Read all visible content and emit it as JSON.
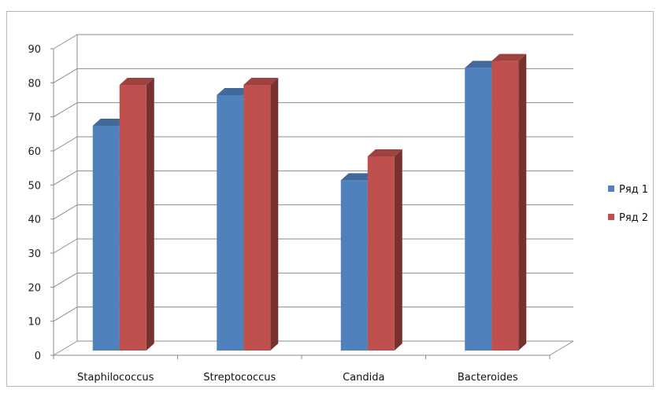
{
  "chart_data": {
    "type": "bar",
    "categories": [
      "Staphilococcus",
      "Streptococcus",
      "Candida",
      "Bacteroides"
    ],
    "series": [
      {
        "name": "Ряд 1",
        "values": [
          66,
          75,
          50,
          83
        ],
        "color": "#4f81bd"
      },
      {
        "name": "Ряд 2",
        "values": [
          78,
          78,
          57,
          85
        ],
        "color": "#c0504d"
      }
    ],
    "ylim": [
      0,
      90
    ],
    "yticks": [
      0,
      10,
      20,
      30,
      40,
      50,
      60,
      70,
      80,
      90
    ],
    "grid": true,
    "legend": "right",
    "style": "3d-clustered-column"
  }
}
